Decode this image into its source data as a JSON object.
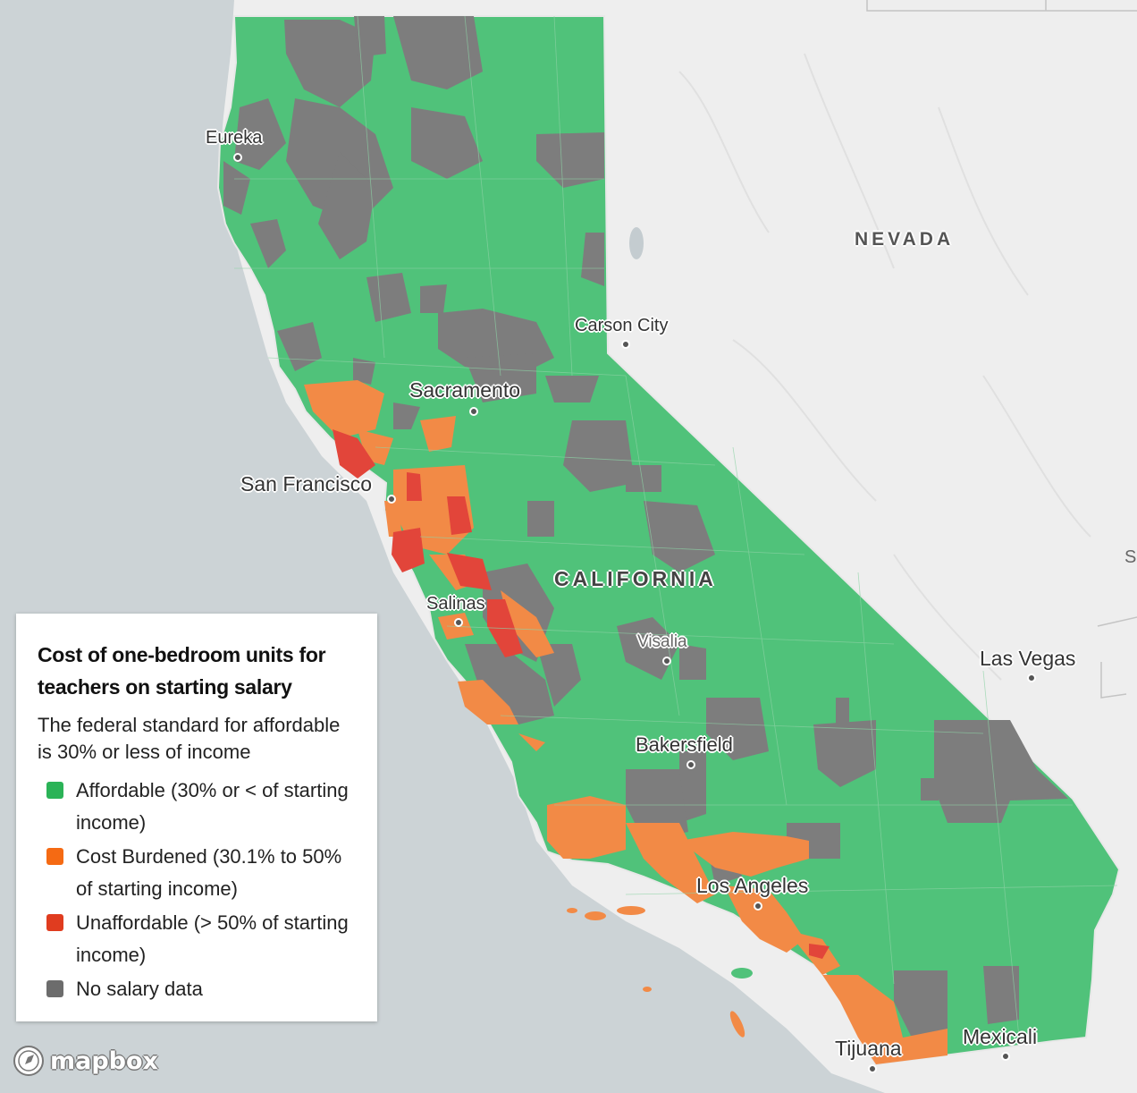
{
  "legend": {
    "title": "Cost of one-bedroom units for teachers on starting salary",
    "subtitle": "The federal standard for affordable is 30% or less of income",
    "items": [
      {
        "label": "Affordable (30% or < of starting income)",
        "color": "#2bb357"
      },
      {
        "label": "Cost Burdened (30.1% to 50% of starting income)",
        "color": "#f56a13"
      },
      {
        "label": "Unaffordable (> 50% of starting income)",
        "color": "#e03c1f"
      },
      {
        "label": "No salary data",
        "color": "#6c6c6c"
      }
    ]
  },
  "map": {
    "colors": {
      "ocean": "#ccd3d6",
      "land": "#efefef",
      "affordable": "#50c27a",
      "burdened": "#f28a46",
      "unaffordable": "#e2453a",
      "no_data": "#7d7d7d"
    },
    "cities": [
      "Eureka",
      "Sacramento",
      "San Francisco",
      "Carson City",
      "Salinas",
      "Visalia",
      "Bakersfield",
      "Las Vegas",
      "Los Angeles",
      "Tijuana",
      "Mexicali"
    ],
    "regions": {
      "nevada": "NEVADA",
      "california": "CALIFORNIA",
      "edge": "S"
    }
  },
  "attribution": {
    "logo_text": "mapbox",
    "logo_icon": "mapbox-compass-icon"
  }
}
